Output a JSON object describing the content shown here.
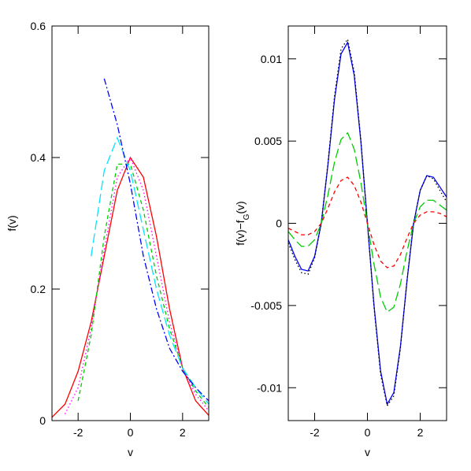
{
  "chart_data": [
    {
      "type": "line",
      "xlabel": "v",
      "ylabel": [
        "f(v)"
      ],
      "xlim": [
        -3,
        3
      ],
      "ylim": [
        0,
        0.6
      ],
      "xticks": [
        -2,
        0,
        2
      ],
      "yticks": [
        0,
        0.2,
        0.4,
        0.6
      ],
      "x": [
        -3,
        -2.5,
        -2,
        -1.5,
        -1,
        -0.5,
        0,
        0.5,
        1,
        1.5,
        2,
        2.5,
        3
      ],
      "series": [
        {
          "color": "#ff0000",
          "style": "solid",
          "values": [
            0.005,
            0.025,
            0.075,
            0.15,
            0.25,
            0.35,
            0.4,
            0.37,
            0.28,
            0.17,
            0.08,
            0.03,
            0.008
          ]
        },
        {
          "color": "#ff00ff",
          "style": "dotted",
          "values": [
            null,
            0.01,
            0.05,
            0.14,
            0.26,
            0.37,
            0.4,
            0.35,
            0.25,
            0.15,
            0.08,
            0.04,
            0.015
          ]
        },
        {
          "color": "#00cc00",
          "style": "dashed",
          "values": [
            null,
            null,
            0.03,
            0.13,
            0.28,
            0.39,
            0.39,
            0.32,
            0.22,
            0.14,
            0.08,
            0.045,
            0.02
          ]
        },
        {
          "color": "#00e5ff",
          "style": "longdash",
          "values": [
            null,
            null,
            null,
            0.25,
            0.38,
            0.43,
            0.38,
            0.29,
            0.2,
            0.13,
            0.08,
            0.05,
            0.025
          ]
        },
        {
          "color": "#0000ff",
          "style": "dashdot",
          "values": [
            null,
            null,
            null,
            null,
            0.52,
            0.45,
            0.36,
            0.25,
            0.17,
            0.11,
            0.075,
            0.05,
            0.03
          ]
        }
      ]
    },
    {
      "type": "line",
      "xlabel": "v",
      "ylabel": [
        "f(v)−f",
        "G",
        "(v)"
      ],
      "xlim": [
        -3,
        3
      ],
      "ylim": [
        -0.012,
        0.012
      ],
      "xticks": [
        -2,
        0,
        2
      ],
      "yticks": [
        -0.01,
        -0.005,
        0,
        0.005,
        0.01
      ],
      "x": [
        -3,
        -2.75,
        -2.5,
        -2.25,
        -2,
        -1.75,
        -1.5,
        -1.25,
        -1,
        -0.75,
        -0.5,
        -0.25,
        0,
        0.25,
        0.5,
        0.75,
        1,
        1.25,
        1.5,
        1.75,
        2,
        2.25,
        2.5,
        2.75,
        3
      ],
      "series": [
        {
          "color": "#0000ff",
          "style": "solid",
          "values": [
            -0.001,
            -0.002,
            -0.0028,
            -0.0029,
            -0.002,
            0,
            0.0035,
            0.0075,
            0.0103,
            0.011,
            0.009,
            0.005,
            0,
            -0.005,
            -0.009,
            -0.011,
            -0.0103,
            -0.0075,
            -0.0035,
            0,
            0.002,
            0.0029,
            0.0028,
            0.0022,
            0.0016
          ]
        },
        {
          "color": "#000000",
          "style": "dotted",
          "values": [
            -0.0012,
            -0.0022,
            -0.003,
            -0.0031,
            -0.0021,
            0,
            0.0036,
            0.0077,
            0.0106,
            0.0112,
            0.0092,
            0.0051,
            0,
            -0.0051,
            -0.0092,
            -0.0111,
            -0.0105,
            -0.0076,
            -0.0035,
            0,
            0.002,
            0.0029,
            0.0027,
            0.002,
            0.0013
          ]
        },
        {
          "color": "#00cc00",
          "style": "longdash",
          "values": [
            -0.0005,
            -0.001,
            -0.0014,
            -0.0014,
            -0.001,
            0,
            0.0017,
            0.0037,
            0.0051,
            0.0055,
            0.0045,
            0.0025,
            0,
            -0.0025,
            -0.0045,
            -0.0054,
            -0.0051,
            -0.0037,
            -0.0017,
            0,
            0.001,
            0.0014,
            0.0014,
            0.0011,
            0.0008
          ]
        },
        {
          "color": "#ff0000",
          "style": "dashed",
          "values": [
            -0.0003,
            -0.0005,
            -0.0007,
            -0.0007,
            -0.0005,
            0,
            0.0009,
            0.0019,
            0.0026,
            0.0028,
            0.0023,
            0.0013,
            0,
            -0.0013,
            -0.0023,
            -0.0027,
            -0.0026,
            -0.0019,
            -0.0009,
            0,
            0.0005,
            0.0007,
            0.0007,
            0.0006,
            0.0004
          ]
        }
      ]
    }
  ]
}
